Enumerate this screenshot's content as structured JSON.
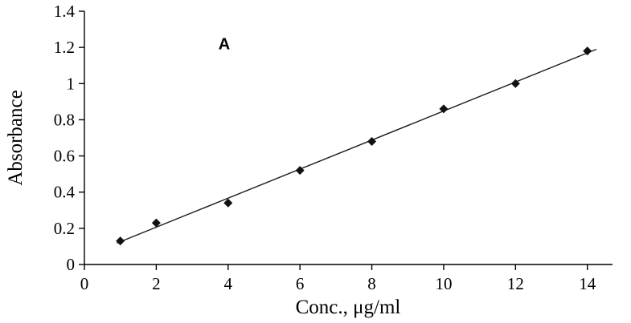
{
  "chart_data": {
    "type": "scatter",
    "title": "",
    "xlabel": "Conc., μg/ml",
    "ylabel": "Absorbance",
    "annotation": "A",
    "annotation_pos": {
      "x": 3.9,
      "y": 1.22
    },
    "x": [
      1,
      2,
      4,
      6,
      8,
      10,
      12,
      14
    ],
    "y": [
      0.13,
      0.23,
      0.34,
      0.52,
      0.68,
      0.86,
      1.0,
      1.18
    ],
    "xlim": [
      0,
      14.7
    ],
    "ylim": [
      0,
      1.4
    ],
    "xticks": [
      0,
      2,
      4,
      6,
      8,
      10,
      12,
      14
    ],
    "xtick_labels": [
      "0",
      "2",
      "4",
      "6",
      "8",
      "10",
      "12",
      "14"
    ],
    "yticks": [
      0,
      0.2,
      0.4,
      0.6,
      0.8,
      1.0,
      1.2,
      1.4
    ],
    "ytick_labels": [
      "0",
      "0.2",
      "0.4",
      "0.6",
      "0.8",
      "1",
      "1.2",
      "1.4"
    ],
    "grid": false,
    "legend": "none",
    "marker": "diamond",
    "marker_color": "#111111",
    "line_color": "#1a1a1a",
    "axis_color": "#000000",
    "trendline": "linear"
  }
}
